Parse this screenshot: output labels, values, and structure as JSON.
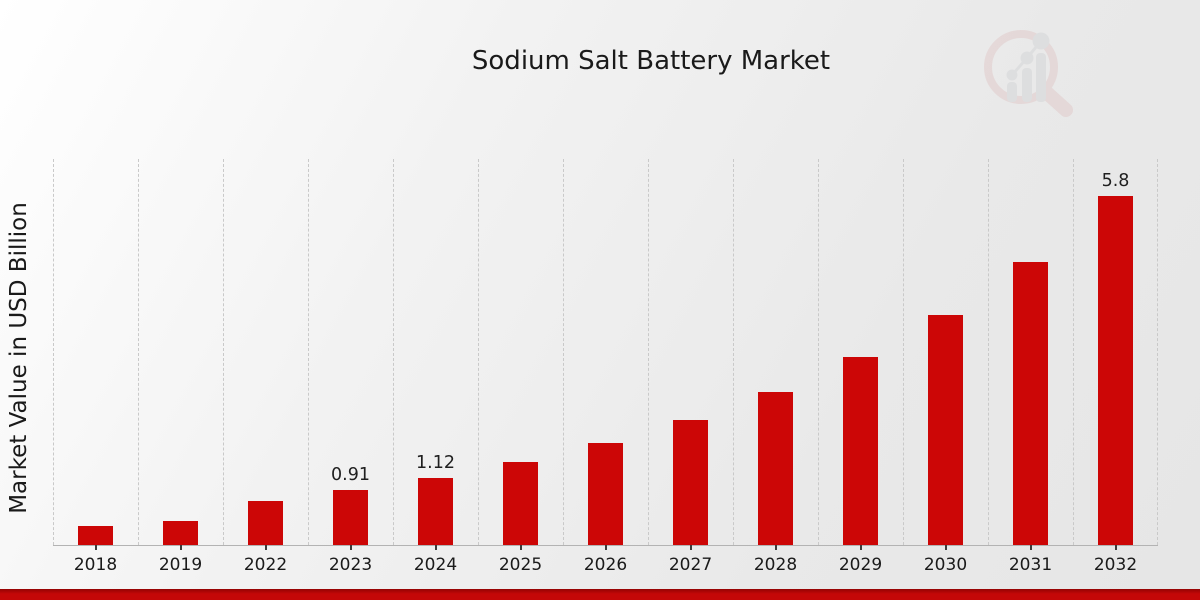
{
  "page": {
    "title": "Sodium Salt Battery Market",
    "ylabel": "Market Value in USD Billion",
    "watermark_icon": "magnifier-growth-chart-logo",
    "accent_red": "#cc0606",
    "footer_bar_color": "#c40707"
  },
  "chart_data": {
    "type": "bar",
    "title": "Sodium Salt Battery Market",
    "xlabel": "",
    "ylabel": "Market Value in USD Billion",
    "categories": [
      "2018",
      "2019",
      "2022",
      "2023",
      "2024",
      "2025",
      "2026",
      "2027",
      "2028",
      "2029",
      "2030",
      "2031",
      "2032"
    ],
    "values": [
      0.31,
      0.4,
      0.74,
      0.91,
      1.12,
      1.38,
      1.7,
      2.07,
      2.55,
      3.12,
      3.83,
      4.7,
      5.8
    ],
    "data_labels": {
      "2023": "0.91",
      "2024": "1.12",
      "2032": "5.8"
    },
    "ylim": [
      0,
      6.48
    ],
    "yticks_visible": false,
    "grid": "vertical-dashed",
    "legend": "none",
    "bar_color": "#cc0606",
    "units": "USD Billion"
  }
}
